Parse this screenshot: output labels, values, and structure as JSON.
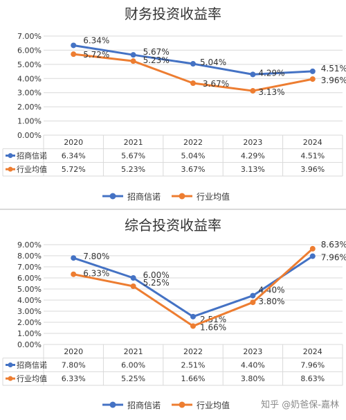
{
  "colors": {
    "series1": "#4472c4",
    "series2": "#ed7d31",
    "grid": "#d9d9d9",
    "text": "#333333"
  },
  "watermark": "知乎 @奶爸保-嘉林",
  "chart_data": [
    {
      "type": "line",
      "title": "财务投资收益率",
      "categories": [
        "2020",
        "2021",
        "2022",
        "2023",
        "2024"
      ],
      "ylim": [
        0,
        7
      ],
      "y_ticks": [
        "0.00%",
        "1.00%",
        "2.00%",
        "3.00%",
        "4.00%",
        "5.00%",
        "6.00%",
        "7.00%"
      ],
      "series": [
        {
          "name": "招商信诺",
          "values": [
            6.34,
            5.67,
            5.04,
            4.29,
            4.51
          ],
          "labels": [
            "6.34%",
            "5.67%",
            "5.04%",
            "4.29%",
            "4.51%"
          ]
        },
        {
          "name": "行业均值",
          "values": [
            5.72,
            5.23,
            3.67,
            3.13,
            3.96
          ],
          "labels": [
            "5.72%",
            "5.23%",
            "3.67%",
            "3.13%",
            "3.96%"
          ]
        }
      ],
      "grid": true,
      "legend": "bottom",
      "data_table": true
    },
    {
      "type": "line",
      "title": "综合投资收益率",
      "categories": [
        "2020",
        "2021",
        "2022",
        "2023",
        "2024"
      ],
      "ylim": [
        0,
        9
      ],
      "y_ticks": [
        "0.00%",
        "1.00%",
        "2.00%",
        "3.00%",
        "4.00%",
        "5.00%",
        "6.00%",
        "7.00%",
        "8.00%",
        "9.00%"
      ],
      "series": [
        {
          "name": "招商信诺",
          "values": [
            7.8,
            6.0,
            2.51,
            4.4,
            7.96
          ],
          "labels": [
            "7.80%",
            "6.00%",
            "2.51%",
            "4.40%",
            "7.96%"
          ]
        },
        {
          "name": "行业均值",
          "values": [
            6.33,
            5.25,
            1.66,
            3.8,
            8.63
          ],
          "labels": [
            "6.33%",
            "5.25%",
            "1.66%",
            "3.80%",
            "8.63%"
          ]
        }
      ],
      "grid": true,
      "legend": "bottom",
      "data_table": true
    }
  ]
}
